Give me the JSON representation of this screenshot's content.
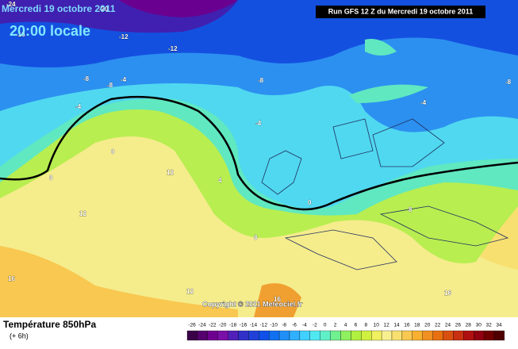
{
  "header": {
    "date": "Mercredi 19 octobre 2011",
    "time": "20:00 locale",
    "run": "Run GFS 12 Z du Mercredi 19 octobre 2011"
  },
  "copyright": "Copyright © 2011 Meteociel.fr",
  "legend": {
    "title": "Température 850hPa",
    "subtitle": "(+ 6h)",
    "scale": [
      -26,
      -24,
      -22,
      -20,
      -18,
      -16,
      -14,
      -12,
      -10,
      -8,
      -6,
      -4,
      -2,
      0,
      2,
      4,
      6,
      8,
      10,
      12,
      14,
      16,
      18,
      20,
      22,
      24,
      26,
      28,
      30,
      32,
      34
    ],
    "colors": [
      "#3a0048",
      "#55006e",
      "#6e0090",
      "#7a10a8",
      "#5020b8",
      "#3030c8",
      "#2040d8",
      "#1050e8",
      "#1070f0",
      "#2090f8",
      "#30b0ff",
      "#40d0ff",
      "#50e8f0",
      "#60f0c8",
      "#70f090",
      "#90f060",
      "#b0f040",
      "#d0f040",
      "#f0f060",
      "#f8f090",
      "#f8e070",
      "#f8c850",
      "#f8b030",
      "#f09020",
      "#e87010",
      "#d85010",
      "#c83010",
      "#b01010",
      "#900010",
      "#700000",
      "#500000"
    ]
  },
  "map": {
    "contour_labels": [
      -24,
      -20,
      -16,
      -12,
      -12,
      -8,
      -8,
      -4,
      -4,
      -8,
      -4,
      0,
      0,
      0,
      4,
      8,
      12,
      12,
      8,
      12,
      16,
      16,
      16,
      -4,
      -8
    ]
  }
}
